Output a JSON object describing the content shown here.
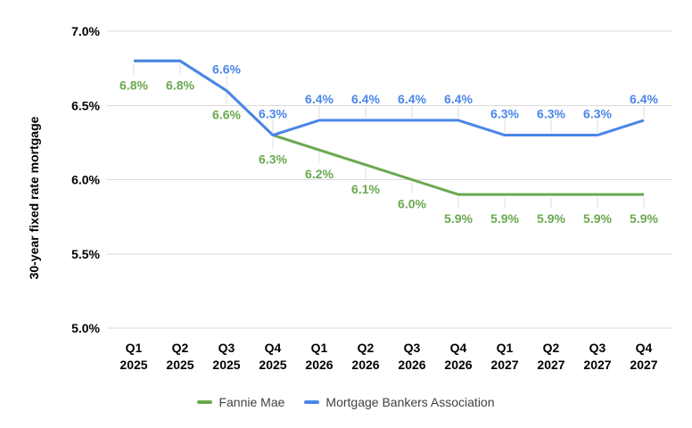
{
  "chart_data": {
    "type": "line",
    "title": "",
    "ylabel": "30-year fixed rate mortgage",
    "categories": [
      "Q1 2025",
      "Q2 2025",
      "Q3 2025",
      "Q4 2025",
      "Q1 2026",
      "Q2 2026",
      "Q3 2026",
      "Q4 2026",
      "Q1 2027",
      "Q2 2027",
      "Q3 2027",
      "Q4 2027"
    ],
    "ylim": [
      5.0,
      7.0
    ],
    "yticks": [
      {
        "value": 7.0,
        "label": "7.0%"
      },
      {
        "value": 6.5,
        "label": "6.5%"
      },
      {
        "value": 6.0,
        "label": "6.0%"
      },
      {
        "value": 5.5,
        "label": "5.5%"
      },
      {
        "value": 5.0,
        "label": "5.0%"
      }
    ],
    "grid": "horizontal",
    "legend_position": "bottom",
    "gridline_color": "#d9d9d9",
    "leader_line_color": "#dcdcdc",
    "series": [
      {
        "name": "Fannie Mae",
        "color": "#6aa84f",
        "label_position": "below",
        "values": [
          6.8,
          6.8,
          6.6,
          6.3,
          6.2,
          6.1,
          6.0,
          5.9,
          5.9,
          5.9,
          5.9,
          5.9
        ],
        "labels": [
          "6.8%",
          "6.8%",
          "6.6%",
          "6.3%",
          "6.2%",
          "6.1%",
          "6.0%",
          "5.9%",
          "5.9%",
          "5.9%",
          "5.9%",
          "5.9%"
        ]
      },
      {
        "name": "Mortgage Bankers Association",
        "color": "#4a86e8",
        "label_position": "above",
        "values": [
          6.8,
          6.8,
          6.6,
          6.3,
          6.4,
          6.4,
          6.4,
          6.4,
          6.3,
          6.3,
          6.3,
          6.4
        ],
        "labels": [
          "",
          "",
          "6.6%",
          "6.3%",
          "6.4%",
          "6.4%",
          "6.4%",
          "6.4%",
          "6.3%",
          "6.3%",
          "6.3%",
          "6.4%"
        ]
      }
    ]
  }
}
